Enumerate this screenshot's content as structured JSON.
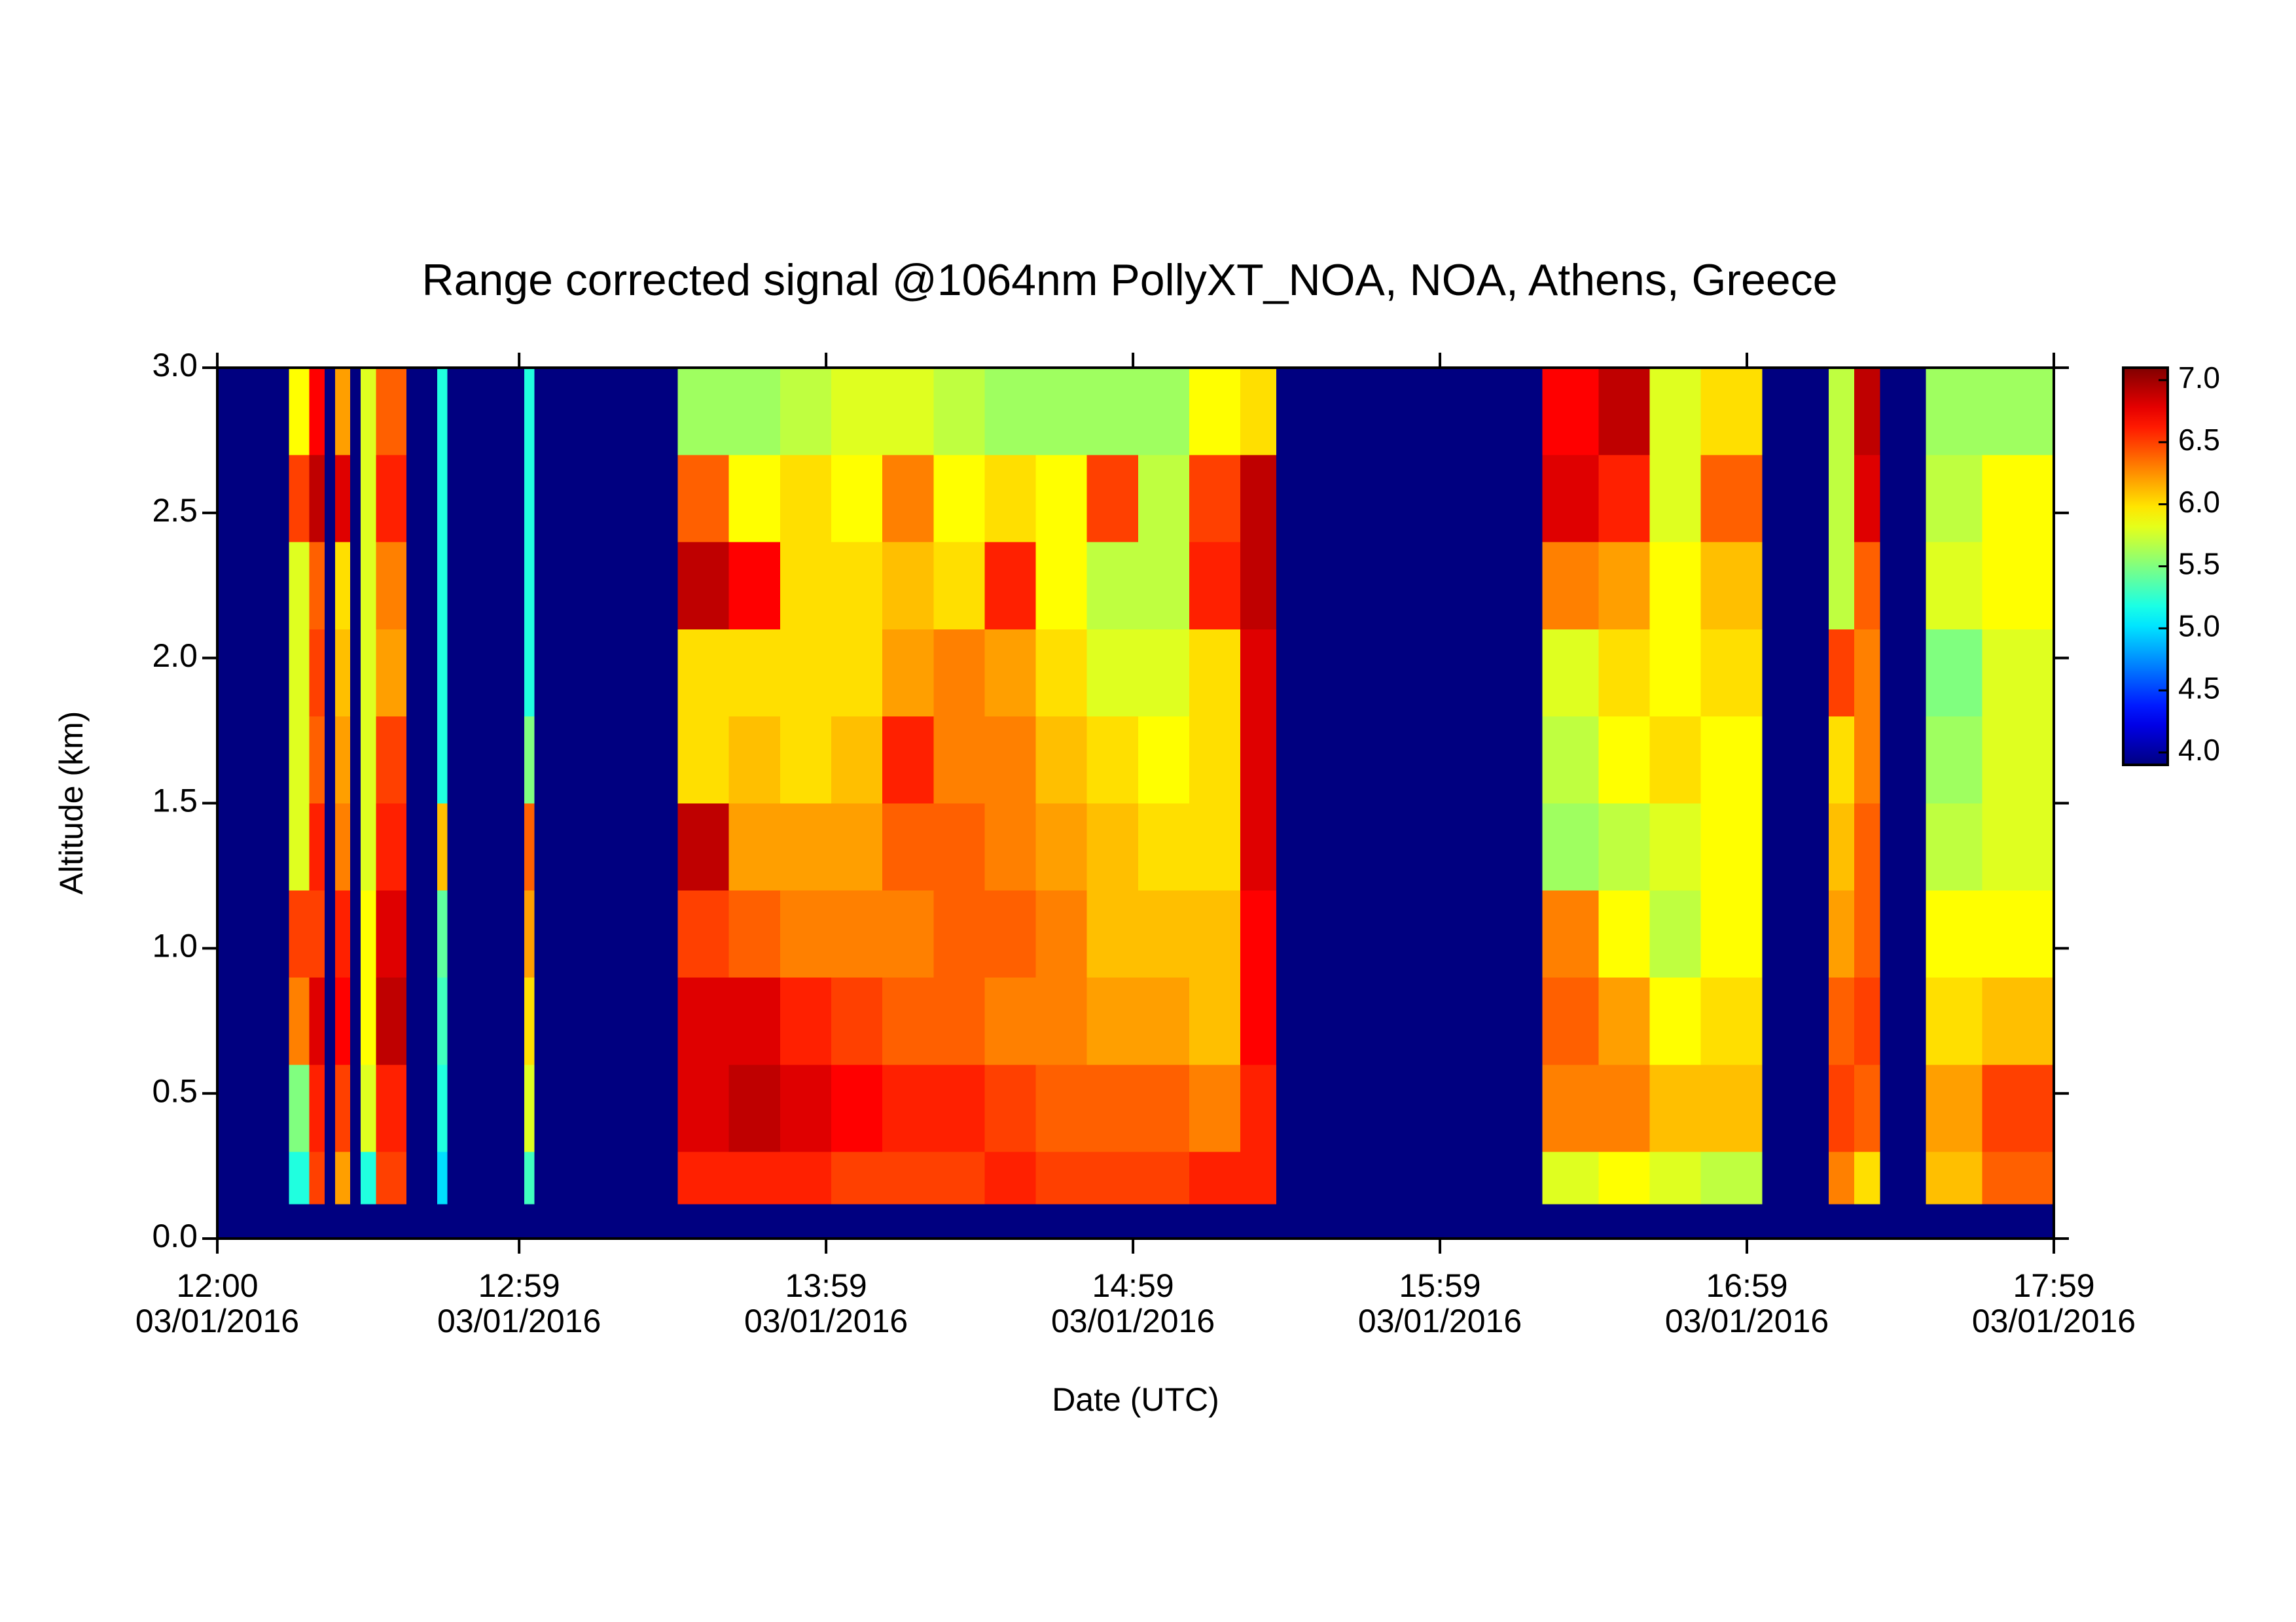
{
  "chart_data": {
    "type": "heatmap",
    "title": "Range corrected signal @1064nm  PollyXT_NOA, NOA, Athens, Greece",
    "xlabel": "Date (UTC)",
    "ylabel": "Altitude (km)",
    "colormap": "jet",
    "xlim": [
      0,
      359
    ],
    "xticks": [
      {
        "value": 0,
        "label": "12:00\n03/01/2016"
      },
      {
        "value": 59,
        "label": "12:59\n03/01/2016"
      },
      {
        "value": 119,
        "label": "13:59\n03/01/2016"
      },
      {
        "value": 179,
        "label": "14:59\n03/01/2016"
      },
      {
        "value": 239,
        "label": "15:59\n03/01/2016"
      },
      {
        "value": 299,
        "label": "16:59\n03/01/2016"
      },
      {
        "value": 359,
        "label": "17:59\n03/01/2016"
      }
    ],
    "ylim": [
      0,
      3
    ],
    "yticks": [
      {
        "value": 0,
        "label": "0.0"
      },
      {
        "value": 0.5,
        "label": "0.5"
      },
      {
        "value": 1,
        "label": "1.0"
      },
      {
        "value": 1.5,
        "label": "1.5"
      },
      {
        "value": 2,
        "label": "2.0"
      },
      {
        "value": 2.5,
        "label": "2.5"
      },
      {
        "value": 3,
        "label": "3.0"
      }
    ],
    "clim": [
      3.9,
      7.1
    ],
    "cticks": [
      {
        "value": 4,
        "label": "4.0"
      },
      {
        "value": 4.5,
        "label": "4.5"
      },
      {
        "value": 5,
        "label": "5.0"
      },
      {
        "value": 5.5,
        "label": "5.5"
      },
      {
        "value": 6,
        "label": "6.0"
      },
      {
        "value": 6.5,
        "label": "6.5"
      },
      {
        "value": 7,
        "label": "7.0"
      }
    ],
    "x_bins": [
      0,
      14,
      18,
      21,
      23,
      26,
      28,
      31,
      37,
      43,
      45,
      60,
      62,
      90,
      100,
      110,
      120,
      130,
      140,
      150,
      160,
      170,
      180,
      190,
      200,
      207,
      259,
      270,
      280,
      290,
      302,
      315,
      320,
      325,
      334,
      345,
      359
    ],
    "y_bins": [
      0,
      0.12,
      0.3,
      0.6,
      0.9,
      1.2,
      1.5,
      1.8,
      2.1,
      2.4,
      2.7,
      3.0
    ],
    "z": [
      [
        3.9,
        3.9,
        3.9,
        3.9,
        3.9,
        3.9,
        3.9,
        3.9,
        3.9,
        3.9,
        3.9
      ],
      [
        3.9,
        5.2,
        5.5,
        6.3,
        6.5,
        5.8,
        5.8,
        5.8,
        5.8,
        6.5,
        5.9
      ],
      [
        3.9,
        6.5,
        6.6,
        6.8,
        6.5,
        6.6,
        6.4,
        6.5,
        6.4,
        6.9,
        6.7
      ],
      [
        3.9,
        3.9,
        3.9,
        3.9,
        3.9,
        3.9,
        3.9,
        3.9,
        3.9,
        3.9,
        3.9
      ],
      [
        3.9,
        6.2,
        6.5,
        6.7,
        6.6,
        6.3,
        6.2,
        6.1,
        6.0,
        6.8,
        6.2
      ],
      [
        3.9,
        3.9,
        3.9,
        3.9,
        3.9,
        3.9,
        3.9,
        3.9,
        3.9,
        3.9,
        3.9
      ],
      [
        3.9,
        5.2,
        5.8,
        5.9,
        5.9,
        5.8,
        5.8,
        5.8,
        5.8,
        5.8,
        5.8
      ],
      [
        3.9,
        6.5,
        6.6,
        6.9,
        6.8,
        6.6,
        6.5,
        6.2,
        6.3,
        6.6,
        6.4
      ],
      [
        3.9,
        3.9,
        3.9,
        3.9,
        3.9,
        3.9,
        3.9,
        3.9,
        3.9,
        3.9,
        3.9
      ],
      [
        3.9,
        5.0,
        5.2,
        5.3,
        5.4,
        6.1,
        5.2,
        5.2,
        5.2,
        5.2,
        5.2
      ],
      [
        3.9,
        3.9,
        3.9,
        3.9,
        3.9,
        3.9,
        3.9,
        3.9,
        3.9,
        3.9,
        3.9
      ],
      [
        3.9,
        5.3,
        5.8,
        6.0,
        6.2,
        6.4,
        5.5,
        5.2,
        5.2,
        5.2,
        5.2
      ],
      [
        3.9,
        3.9,
        3.9,
        3.9,
        3.9,
        3.9,
        3.9,
        3.9,
        3.9,
        3.9,
        3.9
      ],
      [
        3.9,
        6.6,
        6.8,
        6.8,
        6.5,
        6.9,
        6.0,
        6.0,
        6.9,
        6.4,
        5.6
      ],
      [
        3.9,
        6.6,
        6.9,
        6.8,
        6.4,
        6.2,
        6.1,
        6.0,
        6.7,
        5.9,
        5.6
      ],
      [
        3.9,
        6.6,
        6.8,
        6.6,
        6.3,
        6.2,
        6.0,
        6.0,
        6.0,
        6.0,
        5.7
      ],
      [
        3.9,
        6.5,
        6.7,
        6.5,
        6.3,
        6.2,
        6.1,
        6.0,
        6.0,
        5.9,
        5.8
      ],
      [
        3.9,
        6.5,
        6.6,
        6.4,
        6.3,
        6.4,
        6.6,
        6.2,
        6.1,
        6.3,
        5.8
      ],
      [
        3.9,
        6.5,
        6.6,
        6.4,
        6.4,
        6.4,
        6.3,
        6.3,
        6.0,
        5.9,
        5.7
      ],
      [
        3.9,
        6.6,
        6.5,
        6.3,
        6.4,
        6.3,
        6.3,
        6.2,
        6.6,
        6.0,
        5.6
      ],
      [
        3.9,
        6.5,
        6.4,
        6.3,
        6.3,
        6.2,
        6.1,
        6.0,
        5.9,
        5.9,
        5.6
      ],
      [
        3.9,
        6.5,
        6.4,
        6.2,
        6.1,
        6.1,
        6.0,
        5.8,
        5.7,
        6.5,
        5.6
      ],
      [
        3.9,
        6.5,
        6.4,
        6.2,
        6.1,
        6.0,
        5.9,
        5.8,
        5.7,
        5.7,
        5.6
      ],
      [
        3.9,
        6.6,
        6.3,
        6.1,
        6.1,
        6.0,
        6.0,
        6.0,
        6.6,
        6.5,
        5.9
      ],
      [
        3.9,
        6.6,
        6.6,
        6.7,
        6.7,
        6.8,
        6.8,
        6.8,
        6.9,
        6.9,
        6.0
      ],
      [
        3.9,
        3.9,
        3.9,
        3.9,
        3.9,
        3.9,
        3.9,
        3.9,
        3.9,
        3.9,
        3.9
      ],
      [
        3.9,
        5.8,
        6.3,
        6.4,
        6.3,
        5.6,
        5.7,
        5.8,
        6.3,
        6.8,
        6.7
      ],
      [
        3.9,
        5.9,
        6.3,
        6.2,
        5.9,
        5.7,
        5.9,
        6.0,
        6.2,
        6.6,
        6.9
      ],
      [
        3.9,
        5.8,
        6.1,
        5.9,
        5.7,
        5.8,
        6.0,
        5.9,
        5.9,
        5.8,
        5.8
      ],
      [
        3.9,
        5.7,
        6.1,
        6.0,
        5.9,
        5.9,
        5.9,
        6.0,
        6.1,
        6.4,
        6.0
      ],
      [
        3.9,
        3.9,
        3.9,
        3.9,
        3.9,
        3.9,
        3.9,
        3.9,
        3.9,
        3.9,
        3.9
      ],
      [
        3.9,
        6.3,
        6.5,
        6.4,
        6.2,
        6.1,
        6.0,
        6.5,
        5.7,
        5.7,
        5.7
      ],
      [
        3.9,
        6.0,
        6.4,
        6.5,
        6.4,
        6.4,
        6.3,
        6.3,
        6.4,
        6.8,
        6.9
      ],
      [
        3.9,
        3.9,
        3.9,
        3.9,
        3.9,
        3.9,
        3.9,
        3.9,
        3.9,
        3.9,
        3.9
      ],
      [
        3.9,
        6.1,
        6.2,
        6.0,
        5.9,
        5.7,
        5.6,
        5.5,
        5.8,
        5.7,
        5.6
      ],
      [
        3.9,
        6.4,
        6.5,
        6.1,
        5.9,
        5.8,
        5.8,
        5.8,
        5.9,
        5.9,
        5.6
      ]
    ]
  }
}
